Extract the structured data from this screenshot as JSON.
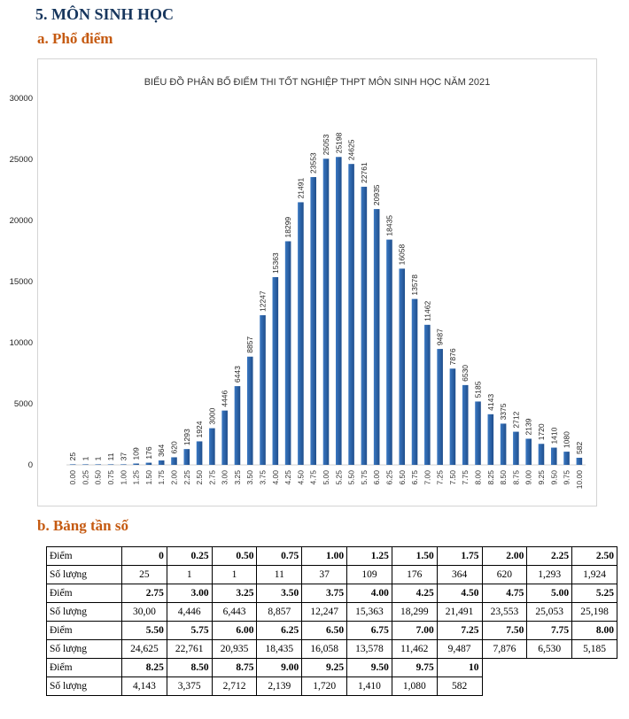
{
  "section": {
    "title": "5.  MÔN SINH HỌC"
  },
  "subsections": {
    "a": "a.  Phổ điểm",
    "b": "b.  Bảng tần số"
  },
  "colors": {
    "bar": "#3a78c2",
    "bar_dark": "#1f4e8c",
    "heading": "#17365d",
    "subheading": "#c55a11"
  },
  "chart_data": {
    "type": "bar",
    "title": "BIỂU ĐỒ PHÂN BỐ ĐIỂM THI TỐT NGHIỆP THPT MÔN SINH HỌC NĂM 2021",
    "xlabel": "",
    "ylabel": "",
    "ylim": [
      0,
      30000
    ],
    "yticks": [
      "0",
      "5000",
      "10000",
      "15000",
      "20000",
      "25000",
      "30000"
    ],
    "categories": [
      "0.00",
      "0.25",
      "0.50",
      "0.75",
      "1.00",
      "1.25",
      "1.50",
      "1.75",
      "2.00",
      "2.25",
      "2.50",
      "2.75",
      "3.00",
      "3.25",
      "3.50",
      "3.75",
      "4.00",
      "4.25",
      "4.50",
      "4.75",
      "5.00",
      "5.25",
      "5.50",
      "5.75",
      "6.00",
      "6.25",
      "6.50",
      "6.75",
      "7.00",
      "7.25",
      "7.50",
      "7.75",
      "8.00",
      "8.25",
      "8.50",
      "8.75",
      "9.00",
      "9.25",
      "9.50",
      "9.75",
      "10.00"
    ],
    "values": [
      25,
      1,
      1,
      11,
      37,
      109,
      176,
      364,
      620,
      1293,
      1924,
      3000,
      4446,
      6443,
      8857,
      12247,
      15363,
      18299,
      21491,
      23553,
      25053,
      25198,
      24625,
      22761,
      20935,
      18435,
      16058,
      13578,
      11462,
      9487,
      7876,
      6530,
      5185,
      4143,
      3375,
      2712,
      2139,
      1720,
      1410,
      1080,
      582
    ],
    "grid": false
  },
  "table": {
    "rows": [
      {
        "kind": "diem",
        "label": "Điểm",
        "cells": [
          "0",
          "0.25",
          "0.50",
          "0.75",
          "1.00",
          "1.25",
          "1.50",
          "1.75",
          "2.00",
          "2.25",
          "2.50"
        ]
      },
      {
        "kind": "sl",
        "label": "Số lượng",
        "cells": [
          "25",
          "1",
          "1",
          "11",
          "37",
          "109",
          "176",
          "364",
          "620",
          "1,293",
          "1,924"
        ]
      },
      {
        "kind": "diem",
        "label": "Điểm",
        "cells": [
          "2.75",
          "3.00",
          "3.25",
          "3.50",
          "3.75",
          "4.00",
          "4.25",
          "4.50",
          "4.75",
          "5.00",
          "5.25"
        ]
      },
      {
        "kind": "sl",
        "label": "Số lượng",
        "cells": [
          "30,00",
          "4,446",
          "6,443",
          "8,857",
          "12,247",
          "15,363",
          "18,299",
          "21,491",
          "23,553",
          "25,053",
          "25,198"
        ]
      },
      {
        "kind": "diem",
        "label": "Điểm",
        "cells": [
          "5.50",
          "5.75",
          "6.00",
          "6.25",
          "6.50",
          "6.75",
          "7.00",
          "7.25",
          "7.50",
          "7.75",
          "8.00"
        ]
      },
      {
        "kind": "sl",
        "label": "Số lượng",
        "cells": [
          "24,625",
          "22,761",
          "20,935",
          "18,435",
          "16,058",
          "13,578",
          "11,462",
          "9,487",
          "7,876",
          "6,530",
          "5,185"
        ]
      },
      {
        "kind": "diem",
        "label": "Điểm",
        "cells": [
          "8.25",
          "8.50",
          "8.75",
          "9.00",
          "9.25",
          "9.50",
          "9.75",
          "10"
        ]
      },
      {
        "kind": "sl",
        "label": "Số lượng",
        "cells": [
          "4,143",
          "3,375",
          "2,712",
          "2,139",
          "1,720",
          "1,410",
          "1,080",
          "582"
        ]
      }
    ]
  }
}
